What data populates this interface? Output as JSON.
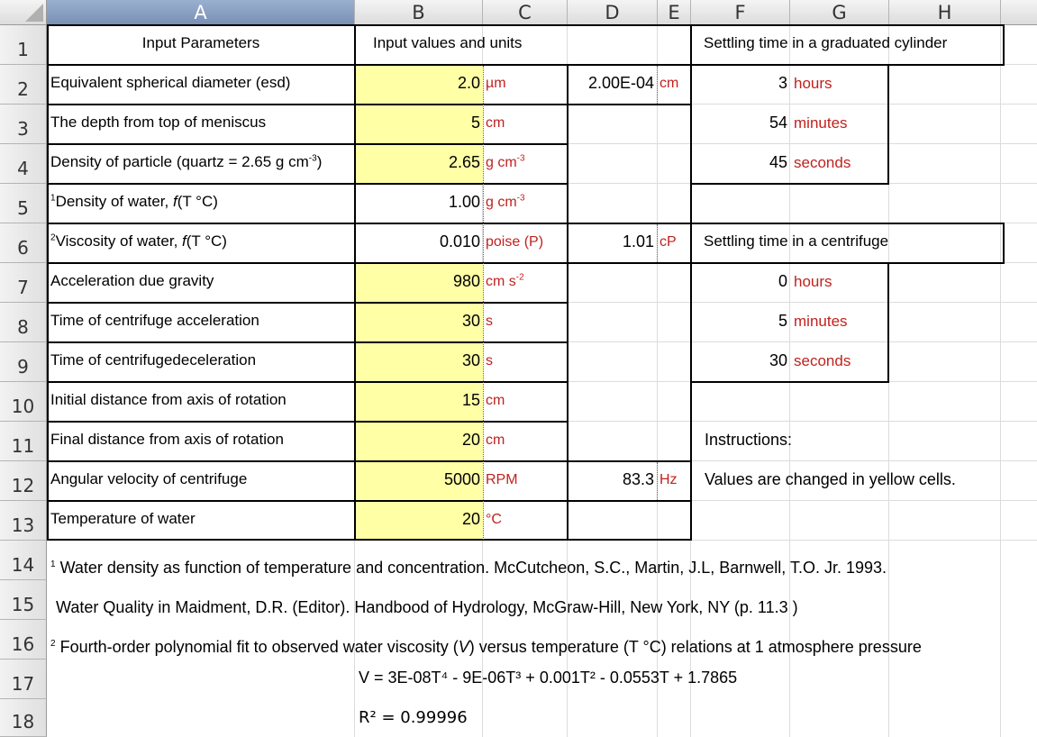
{
  "columns": [
    "A",
    "B",
    "C",
    "D",
    "E",
    "F",
    "G",
    "H"
  ],
  "rows": [
    "1",
    "2",
    "3",
    "4",
    "5",
    "6",
    "7",
    "8",
    "9",
    "10",
    "11",
    "12",
    "13",
    "14",
    "15",
    "16",
    "17",
    "18"
  ],
  "header": {
    "input_parameters": "Input Parameters",
    "input_values_units": "Input values and units",
    "settling_cylinder": "Settling time in a graduated cylinder",
    "settling_centrifuge": "Settling time in a centrifuge"
  },
  "params": [
    {
      "label": "Equivalent spherical diameter (esd)",
      "value": "2.0",
      "unit": "µm"
    },
    {
      "label": "The depth from top of meniscus",
      "value": "5",
      "unit": "cm"
    },
    {
      "label_main": "Density of particle (quartz = 2.65 g cm",
      "label_sup": "-3",
      "label_end": ")",
      "value": "2.65",
      "unit": "g cm",
      "unit_sup": "-3"
    },
    {
      "label_sup_prefix": "1",
      "label_main": "Density of water, ",
      "label_italic": "f",
      "label_end": "(T °C)",
      "value": "1.00",
      "unit": "g cm",
      "unit_sup": "-3"
    },
    {
      "label_sup_prefix": "2",
      "label_main": "Viscosity of water, ",
      "label_italic": "f",
      "label_end": "(T °C)",
      "value": "0.010",
      "unit": "poise (P)"
    },
    {
      "label": "Acceleration due gravity",
      "value": "980",
      "unit": "cm s",
      "unit_sup": "-2"
    },
    {
      "label": "Time of centrifuge acceleration",
      "value": "30",
      "unit": "s"
    },
    {
      "label": "Time of centrifugedeceleration",
      "value": "30",
      "unit": "s"
    },
    {
      "label": "Initial distance from axis of rotation",
      "value": "15",
      "unit": "cm"
    },
    {
      "label": "Final distance from axis of rotation",
      "value": "20",
      "unit": "cm"
    },
    {
      "label": "Angular velocity of centrifuge",
      "value": "5000",
      "unit": "RPM"
    },
    {
      "label": "Temperature of water",
      "value": "20",
      "unit": "°C"
    }
  ],
  "converted": {
    "esd_value": "2.00E-04",
    "esd_unit": "cm",
    "visc_value": "1.01",
    "visc_unit": "cP",
    "ang_value": "83.3",
    "ang_unit": "Hz"
  },
  "cylinder_time": [
    {
      "value": "3",
      "unit": "hours"
    },
    {
      "value": "54",
      "unit": "minutes"
    },
    {
      "value": "45",
      "unit": "seconds"
    }
  ],
  "centrifuge_time": [
    {
      "value": "0",
      "unit": "hours"
    },
    {
      "value": "5",
      "unit": "minutes"
    },
    {
      "value": "30",
      "unit": "seconds"
    }
  ],
  "instructions": {
    "title": "Instructions:",
    "text": "Values are changed in yellow cells."
  },
  "footnotes": {
    "fn1_marker": "1",
    "fn1_line1": "Water density as function of temperature and concentration. McCutcheon, S.C., Martin, J.L, Barnwell, T.O. Jr. 1993.",
    "fn1_line2": "Water Quality in Maidment, D.R. (Editor). Handbood of Hydrology, McGraw-Hill, New York, NY (p. 11.3 )",
    "fn2_marker": "2",
    "fn2_pre": "Fourth-order polynomial fit to observed water viscosity (",
    "fn2_italic": "V",
    "fn2_post": ") versus temperature (T °C) relations at 1 atmosphere pressure",
    "equation": "V = 3E-08T⁴ - 9E-06T³ + 0.001T² - 0.0553T + 1.7865",
    "r2": "R² = 0.99996"
  },
  "colors": {
    "yellow": "#ffffa6",
    "unit_red": "#c0221e",
    "header_selected": "#7890b4"
  }
}
